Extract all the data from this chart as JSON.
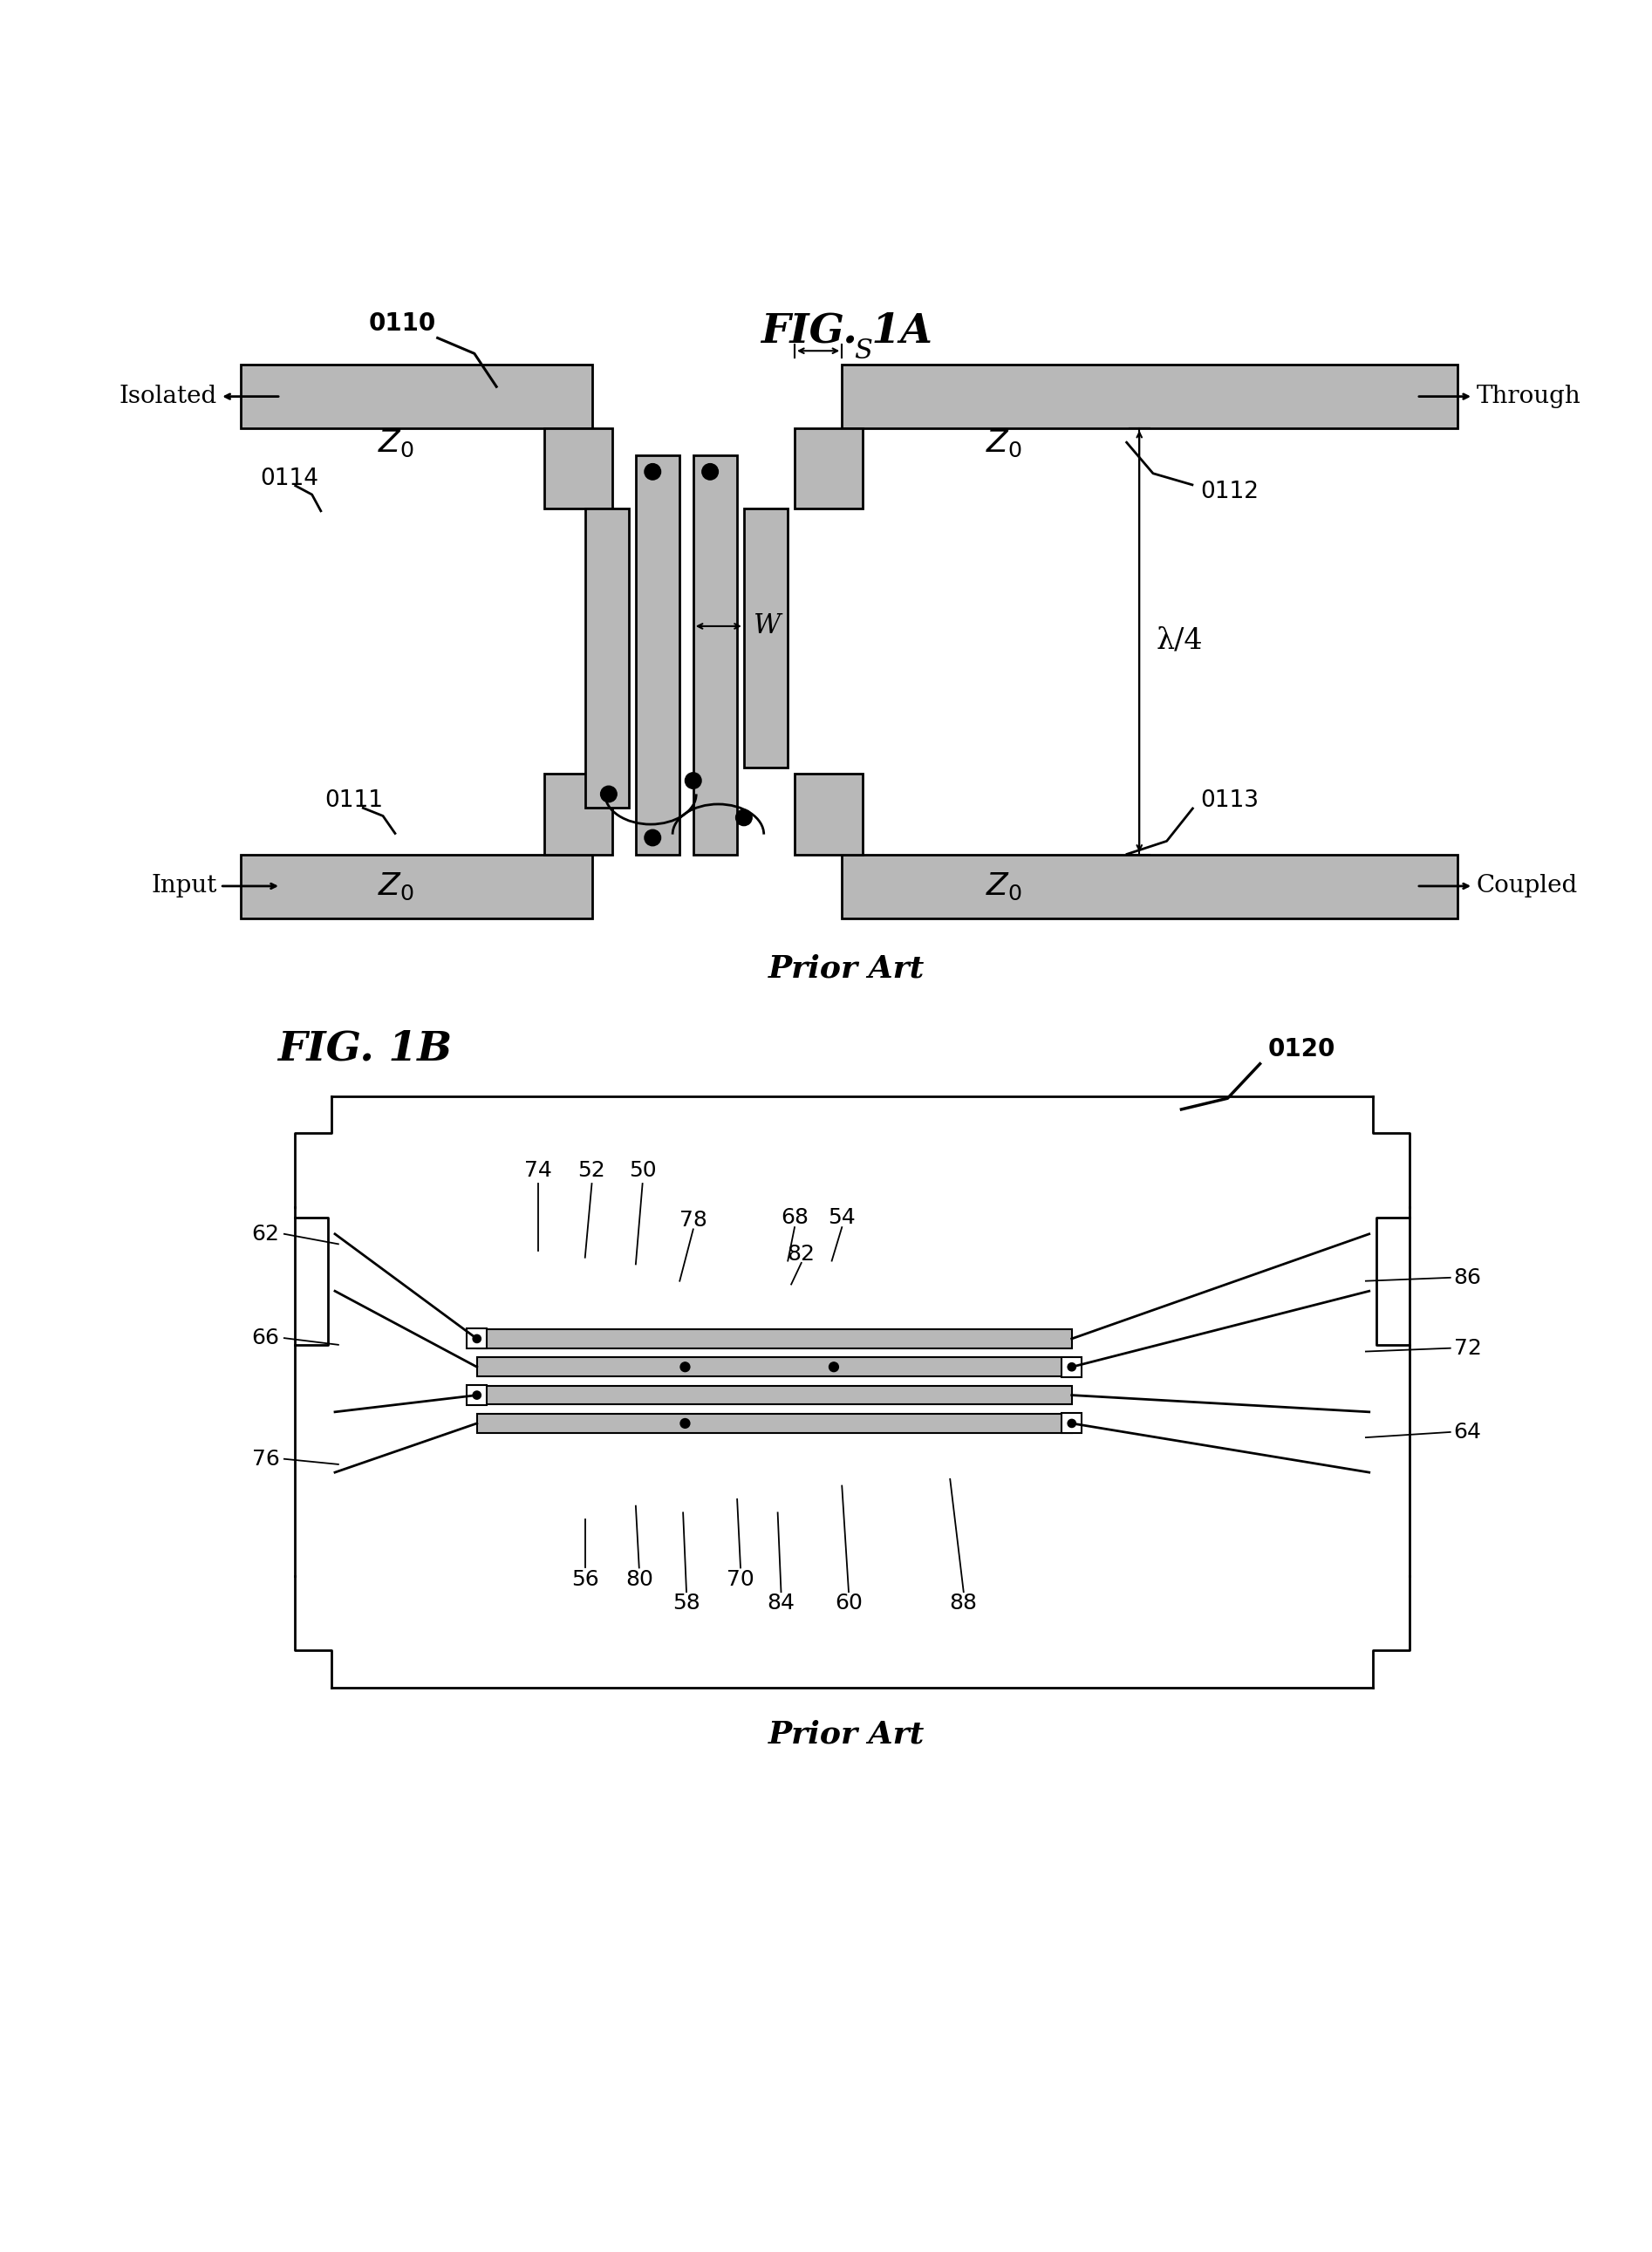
{
  "background_color": "#ffffff",
  "shading_color": "#b8b8b8",
  "line_color": "#000000",
  "fig1a_title": "FIG. 1A",
  "fig1b_title": "FIG. 1B",
  "prior_art": "Prior Art",
  "labels_1a": {
    "ref0110": "0110",
    "ref0111": "0111",
    "ref0112": "0112",
    "ref0113": "0113",
    "ref0114": "0114",
    "isolated": "Isolated",
    "through": "Through",
    "input": "Input",
    "coupled": "Coupled",
    "W": "W",
    "S": "S",
    "lambda4": "λ/4"
  },
  "labels_1b": {
    "ref0120": "0120",
    "n50": "50",
    "n52": "52",
    "n54": "54",
    "n56": "56",
    "n58": "58",
    "n60": "60",
    "n62": "62",
    "n64": "64",
    "n66": "66",
    "n68": "68",
    "n70": "70",
    "n72": "72",
    "n74": "74",
    "n76": "76",
    "n78": "78",
    "n80": "80",
    "n82": "82",
    "n84": "84",
    "n86": "86",
    "n88": "88"
  }
}
